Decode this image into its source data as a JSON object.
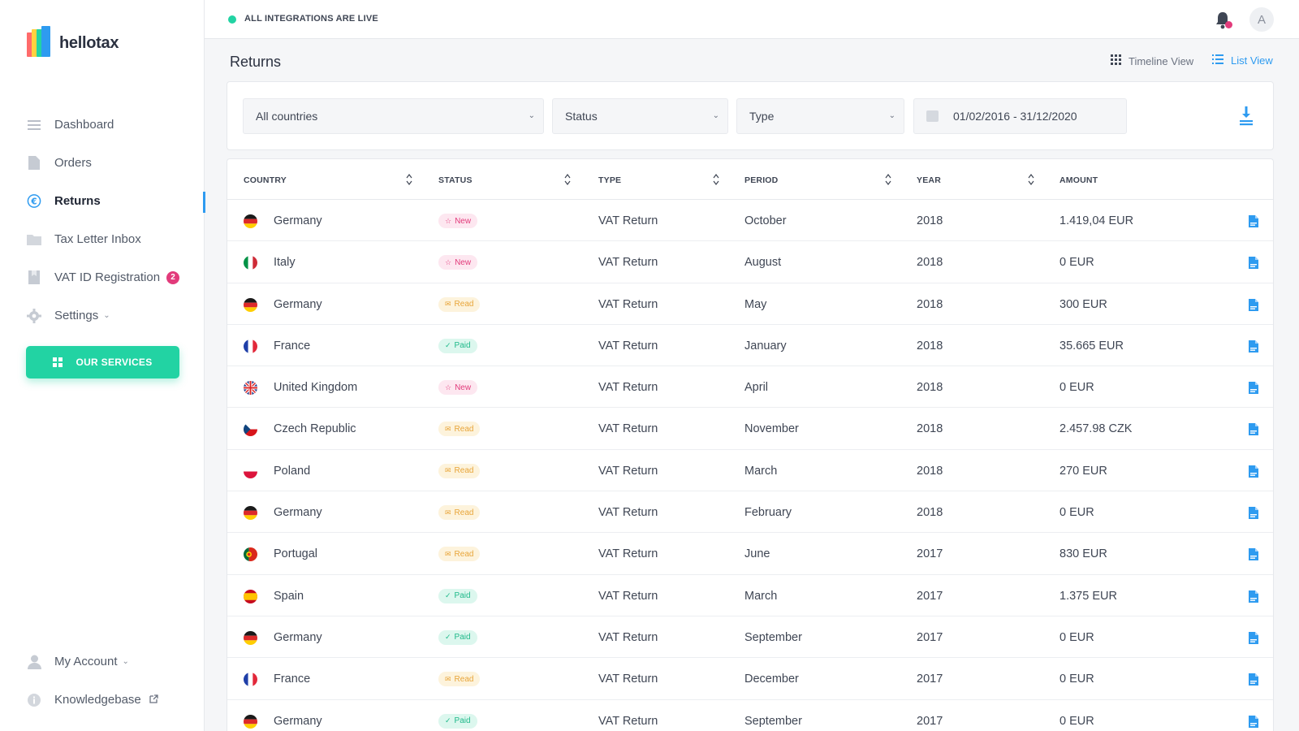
{
  "app": {
    "logo_text": "hellotax"
  },
  "sidebar": {
    "items": [
      {
        "label": "Dashboard",
        "icon": "dashboard-icon"
      },
      {
        "label": "Orders",
        "icon": "orders-icon"
      },
      {
        "label": "Returns",
        "icon": "euro-icon"
      },
      {
        "label": "Tax Letter Inbox",
        "icon": "folder-icon"
      },
      {
        "label": "VAT ID Registration",
        "icon": "document-icon",
        "badge": "2"
      },
      {
        "label": "Settings",
        "icon": "gear-icon"
      }
    ],
    "services_button": "OUR SERVICES",
    "bottom": [
      {
        "label": "My Account",
        "icon": "user-icon"
      },
      {
        "label": "Knowledgebase",
        "icon": "info-icon"
      }
    ]
  },
  "topbar": {
    "status_text": "ALL INTEGRATIONS ARE LIVE",
    "avatar_initial": "A"
  },
  "page": {
    "title": "Returns",
    "views": {
      "timeline": "Timeline View",
      "list": "List View"
    }
  },
  "filters": {
    "country": "All countries",
    "status": "Status",
    "type": "Type",
    "date_range": "01/02/2016 - 31/12/2020"
  },
  "table": {
    "headers": [
      "COUNTRY",
      "STATUS",
      "TYPE",
      "PERIOD",
      "YEAR",
      "AMOUNT"
    ],
    "rows": [
      {
        "country": "Germany",
        "flag": "de",
        "status": "New",
        "type": "VAT Return",
        "period": "October",
        "year": "2018",
        "amount": "1.419,04 EUR"
      },
      {
        "country": "Italy",
        "flag": "it",
        "status": "New",
        "type": "VAT Return",
        "period": "August",
        "year": "2018",
        "amount": "0 EUR"
      },
      {
        "country": "Germany",
        "flag": "de",
        "status": "Read",
        "type": "VAT Return",
        "period": "May",
        "year": "2018",
        "amount": "300 EUR"
      },
      {
        "country": "France",
        "flag": "fr",
        "status": "Paid",
        "type": "VAT Return",
        "period": "January",
        "year": "2018",
        "amount": "35.665 EUR"
      },
      {
        "country": "United Kingdom",
        "flag": "gb",
        "status": "New",
        "type": "VAT Return",
        "period": "April",
        "year": "2018",
        "amount": "0 EUR"
      },
      {
        "country": "Czech Republic",
        "flag": "cz",
        "status": "Read",
        "type": "VAT Return",
        "period": "November",
        "year": "2018",
        "amount": "2.457.98 CZK"
      },
      {
        "country": "Poland",
        "flag": "pl",
        "status": "Read",
        "type": "VAT Return",
        "period": "March",
        "year": "2018",
        "amount": "270 EUR"
      },
      {
        "country": "Germany",
        "flag": "de",
        "status": "Read",
        "type": "VAT Return",
        "period": "February",
        "year": "2018",
        "amount": "0 EUR"
      },
      {
        "country": "Portugal",
        "flag": "pt",
        "status": "Read",
        "type": "VAT Return",
        "period": "June",
        "year": "2017",
        "amount": "830 EUR"
      },
      {
        "country": "Spain",
        "flag": "es",
        "status": "Paid",
        "type": "VAT Return",
        "period": "March",
        "year": "2017",
        "amount": "1.375 EUR"
      },
      {
        "country": "Germany",
        "flag": "de",
        "status": "Paid",
        "type": "VAT Return",
        "period": "September",
        "year": "2017",
        "amount": "0 EUR"
      },
      {
        "country": "France",
        "flag": "fr",
        "status": "Read",
        "type": "VAT Return",
        "period": "December",
        "year": "2017",
        "amount": "0 EUR"
      },
      {
        "country": "Germany",
        "flag": "de",
        "status": "Paid",
        "type": "VAT Return",
        "period": "September",
        "year": "2017",
        "amount": "0 EUR"
      }
    ]
  },
  "colors": {
    "accent": "#2e9bf0",
    "brand_green": "#22d3a3",
    "badge_pink": "#e23b7b",
    "read_amber": "#e8a53a"
  }
}
